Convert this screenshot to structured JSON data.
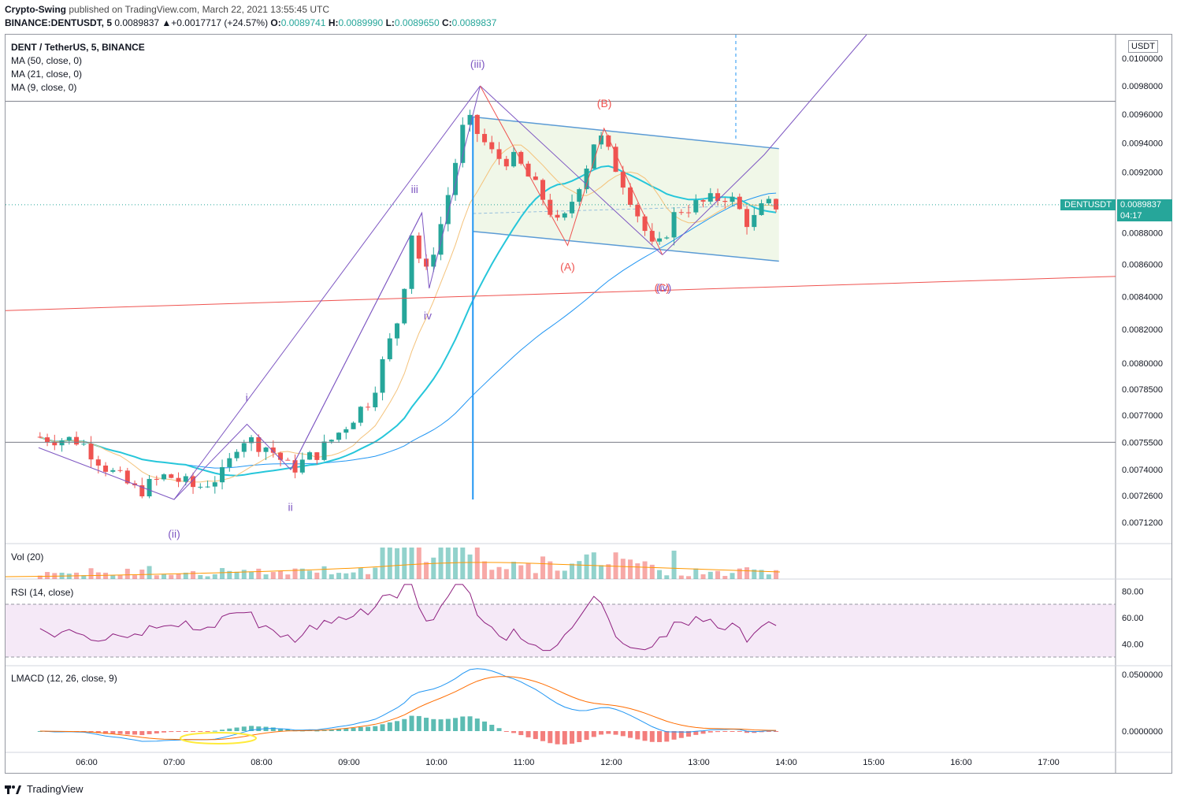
{
  "header": {
    "author": "Crypto-Swing",
    "published_text": "published on TradingView.com, March 22, 2021 13:55:45 UTC",
    "symbol_line": "BINANCE:DENTUSDT, 5",
    "change": "0.0089837  ▲+0.0017717 (+24.57%)",
    "o_label": "O:",
    "o_value": "0.0089741",
    "h_label": "H:",
    "h_value": "0.0089990",
    "l_label": "L:",
    "l_value": "0.0089650",
    "c_label": "C:",
    "c_value": "0.0089837"
  },
  "overlays": {
    "title": "DENT / TetherUS, 5, BINANCE",
    "ma1": "MA (50, close, 0)",
    "ma2": "MA (21, close, 0)",
    "ma3": "MA (9, close, 0)",
    "vol": "Vol (20)",
    "rsi": "RSI (14, close)",
    "lmacd": "LMACD (12, 26, close, 9)"
  },
  "price_tag": {
    "symbol": "DENTUSDT",
    "price": "0.0089837",
    "timer": "04:17"
  },
  "unit_label": "USDT",
  "footer": {
    "brand": "TradingView"
  },
  "wave_labels": [
    {
      "text": "(iii)",
      "color": "#7e57c2",
      "t": 10.47,
      "p": 0.00993
    },
    {
      "text": "(ii)",
      "color": "#7e57c2",
      "t": 7.0,
      "p": 0.00704
    },
    {
      "text": "i",
      "color": "#7e57c2",
      "t": 7.83,
      "p": 0.00778
    },
    {
      "text": "ii",
      "color": "#7e57c2",
      "t": 8.33,
      "p": 0.00718
    },
    {
      "text": "iii",
      "color": "#7e57c2",
      "t": 9.75,
      "p": 0.00906
    },
    {
      "text": "iv",
      "color": "#7e57c2",
      "t": 9.9,
      "p": 0.00826
    },
    {
      "text": "(A)",
      "color": "#ef5350",
      "t": 11.5,
      "p": 0.00856
    },
    {
      "text": "(B)",
      "color": "#ef5350",
      "t": 11.92,
      "p": 0.00965
    },
    {
      "text": "(C)",
      "color": "#ef5350",
      "t": 12.58,
      "p": 0.00843
    },
    {
      "text": "(iv)",
      "color": "#7e57c2",
      "t": 12.6,
      "p": 0.00843
    }
  ],
  "chart_data": {
    "type": "candlestick",
    "symbol": "DENT / TetherUS",
    "exchange": "BINANCE",
    "interval": "5",
    "x_axis": {
      "ticks": [
        "06:00",
        "07:00",
        "08:00",
        "09:00",
        "10:00",
        "11:00",
        "12:00",
        "13:00",
        "14:00",
        "15:00",
        "16:00",
        "17:00"
      ],
      "range": [
        "05:27",
        "17:45"
      ]
    },
    "y_axis": {
      "scale": "log",
      "unit": "USDT",
      "ticks": [
        "0.0100000",
        "0.0098000",
        "0.0096000",
        "0.0094000",
        "0.0092000",
        "0.0090000",
        "0.0088000",
        "0.0086000",
        "0.0084000",
        "0.0082000",
        "0.0080000",
        "0.0078500",
        "0.0077000",
        "0.0075500",
        "0.0074000",
        "0.0072600",
        "0.0071200"
      ]
    },
    "close_series_sampled": [
      [
        "05:30",
        0.00758
      ],
      [
        "06:00",
        0.00756
      ],
      [
        "06:20",
        0.0074
      ],
      [
        "06:40",
        0.00728
      ],
      [
        "07:00",
        0.00737
      ],
      [
        "07:20",
        0.0073
      ],
      [
        "07:40",
        0.00738
      ],
      [
        "07:50",
        0.00758
      ],
      [
        "08:10",
        0.00752
      ],
      [
        "08:25",
        0.0074
      ],
      [
        "08:45",
        0.0075
      ],
      [
        "09:00",
        0.00762
      ],
      [
        "09:20",
        0.0078
      ],
      [
        "09:40",
        0.0083
      ],
      [
        "09:50",
        0.00893
      ],
      [
        "09:55",
        0.00845
      ],
      [
        "10:10",
        0.00892
      ],
      [
        "10:25",
        0.00958
      ],
      [
        "10:45",
        0.0093
      ],
      [
        "11:00",
        0.00928
      ],
      [
        "11:20",
        0.009
      ],
      [
        "11:30",
        0.00882
      ],
      [
        "11:50",
        0.0093
      ],
      [
        "11:55",
        0.00948
      ],
      [
        "12:15",
        0.0091
      ],
      [
        "12:35",
        0.00866
      ],
      [
        "12:50",
        0.00895
      ],
      [
        "13:10",
        0.009
      ],
      [
        "13:25",
        0.00905
      ],
      [
        "13:40",
        0.00885
      ],
      [
        "13:50",
        0.00898
      ]
    ],
    "last_price": 0.0089837,
    "change": 0.0017717,
    "change_percent": 24.57,
    "moving_averages": [
      "MA 50",
      "MA 21",
      "MA 9"
    ],
    "annotations": {
      "channel": {
        "upper": [
          [
            "10:25",
            0.00958
          ],
          [
            "13:55",
            0.00936
          ]
        ],
        "lower": [
          [
            "10:25",
            0.00881
          ],
          [
            "13:55",
            0.00862
          ]
        ]
      },
      "horizontal_levels": [
        0.00969,
        0.00755
      ],
      "trendline_red": [
        [
          "05:27",
          0.00832
        ],
        [
          "13:55",
          0.00846
        ]
      ],
      "vertical_line_time": "10:25"
    },
    "volume": {
      "label": "Vol (20)"
    },
    "rsi": {
      "label": "RSI (14, close)",
      "ticks": [
        "80.00",
        "60.00",
        "40.00"
      ],
      "band": [
        30,
        70
      ]
    },
    "lmacd": {
      "label": "LMACD (12, 26, close, 9)",
      "ticks": [
        "0.0500000",
        "0.0000000"
      ]
    }
  },
  "colors": {
    "up": "#26a69a",
    "down": "#ef5350",
    "ma50": "#2196f3",
    "ma21": "#26c6da",
    "ma9": "#f4c27a",
    "channel": "#5b9bd5",
    "wave": "#7e57c2",
    "rsi": "#8e1f7f"
  }
}
